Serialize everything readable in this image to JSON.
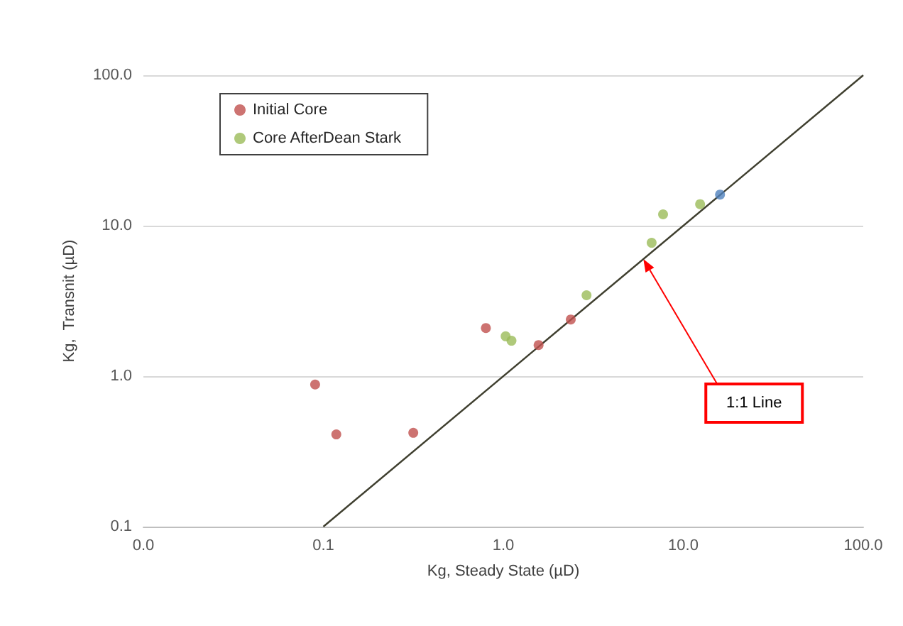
{
  "chart_data": {
    "type": "scatter",
    "xlabel": "Kg, Steady State (µD)",
    "ylabel": "Kg,  Transnit (µD)",
    "log": "xy",
    "grid": "y",
    "legend": "top left",
    "marker": "circle",
    "xlim": [
      0.01,
      100
    ],
    "ylim": [
      0.1,
      100
    ],
    "xticks": [
      {
        "value": 0.01,
        "label": "0.0"
      },
      {
        "value": 0.1,
        "label": "0.1"
      },
      {
        "value": 1,
        "label": "1.0"
      },
      {
        "value": 10,
        "label": "10.0"
      },
      {
        "value": 100,
        "label": "100.0"
      }
    ],
    "yticks": [
      {
        "value": 0.1,
        "label": "0.1"
      },
      {
        "value": 1,
        "label": "1.0"
      },
      {
        "value": 10,
        "label": "10.0"
      },
      {
        "value": 100,
        "label": "100.0"
      }
    ],
    "series": [
      {
        "name": "Initial Core",
        "color": "#c0504d",
        "x": [
          0.09,
          0.118,
          0.316,
          0.8,
          1.57,
          2.37
        ],
        "values": [
          0.88,
          0.41,
          0.42,
          2.09,
          1.61,
          2.38
        ]
      },
      {
        "name": "Core AfterDean Stark",
        "color": "#9bbb59",
        "x": [
          1.03,
          1.11,
          2.9,
          6.67,
          7.72,
          12.4
        ],
        "values": [
          1.84,
          1.72,
          3.45,
          7.7,
          11.9,
          13.9
        ]
      },
      {
        "color": "#4f81bd",
        "x": [
          16
        ],
        "values": [
          16.1
        ]
      },
      {
        "type": "line",
        "color": "#3f3f2f",
        "x": [
          0.1,
          100
        ],
        "values": [
          0.1,
          100
        ],
        "marker": "none"
      }
    ],
    "annotations": [
      {
        "text": "1:1 Line",
        "x": 6,
        "y": 6
      }
    ]
  }
}
